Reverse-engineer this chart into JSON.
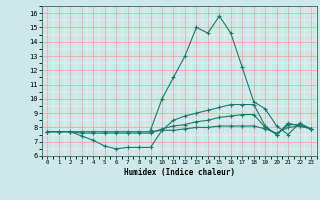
{
  "xlabel": "Humidex (Indice chaleur)",
  "xlim": [
    -0.5,
    23.5
  ],
  "ylim": [
    6,
    16.5
  ],
  "yticks": [
    6,
    7,
    8,
    9,
    10,
    11,
    12,
    13,
    14,
    15,
    16
  ],
  "xticks": [
    0,
    1,
    2,
    3,
    4,
    5,
    6,
    7,
    8,
    9,
    10,
    11,
    12,
    13,
    14,
    15,
    16,
    17,
    18,
    19,
    20,
    21,
    22,
    23
  ],
  "bg_color": "#cce8e8",
  "line_color": "#1a7a6e",
  "grid_color": "#ff9999",
  "grid_color_minor": "#ffffff",
  "lines": [
    {
      "x": [
        0,
        1,
        2,
        3,
        4,
        5,
        6,
        7,
        8,
        9,
        10,
        11,
        12,
        13,
        14,
        15,
        16,
        17,
        18,
        19,
        20,
        21,
        22,
        23
      ],
      "y": [
        7.7,
        7.7,
        7.7,
        7.4,
        7.1,
        6.7,
        6.5,
        6.6,
        6.6,
        6.6,
        7.8,
        8.5,
        8.8,
        9.0,
        9.2,
        9.4,
        9.6,
        9.6,
        9.6,
        8.1,
        7.5,
        8.3,
        8.1,
        7.9
      ]
    },
    {
      "x": [
        0,
        1,
        2,
        3,
        4,
        5,
        6,
        7,
        8,
        9,
        10,
        11,
        12,
        13,
        14,
        15,
        16,
        17,
        18,
        19,
        20,
        21,
        22,
        23
      ],
      "y": [
        7.7,
        7.7,
        7.7,
        7.6,
        7.6,
        7.6,
        7.6,
        7.6,
        7.6,
        7.6,
        7.9,
        8.1,
        8.2,
        8.4,
        8.5,
        8.7,
        8.8,
        8.9,
        8.9,
        8.0,
        7.5,
        8.2,
        8.2,
        7.9
      ]
    },
    {
      "x": [
        0,
        1,
        2,
        3,
        4,
        5,
        6,
        7,
        8,
        9,
        10,
        11,
        12,
        13,
        14,
        15,
        16,
        17,
        18,
        19,
        20,
        21,
        22,
        23
      ],
      "y": [
        7.7,
        7.7,
        7.7,
        7.7,
        7.7,
        7.7,
        7.7,
        7.7,
        7.7,
        7.7,
        7.8,
        7.8,
        7.9,
        8.0,
        8.0,
        8.1,
        8.1,
        8.1,
        8.1,
        7.9,
        7.6,
        8.0,
        8.1,
        7.9
      ]
    },
    {
      "x": [
        9,
        10,
        11,
        12,
        13,
        14,
        15,
        16,
        17,
        18,
        19,
        20,
        21,
        22,
        23
      ],
      "y": [
        7.8,
        10.0,
        11.5,
        13.0,
        15.0,
        14.6,
        15.8,
        14.6,
        12.2,
        9.8,
        9.3,
        8.1,
        7.5,
        8.3,
        7.9
      ]
    }
  ]
}
